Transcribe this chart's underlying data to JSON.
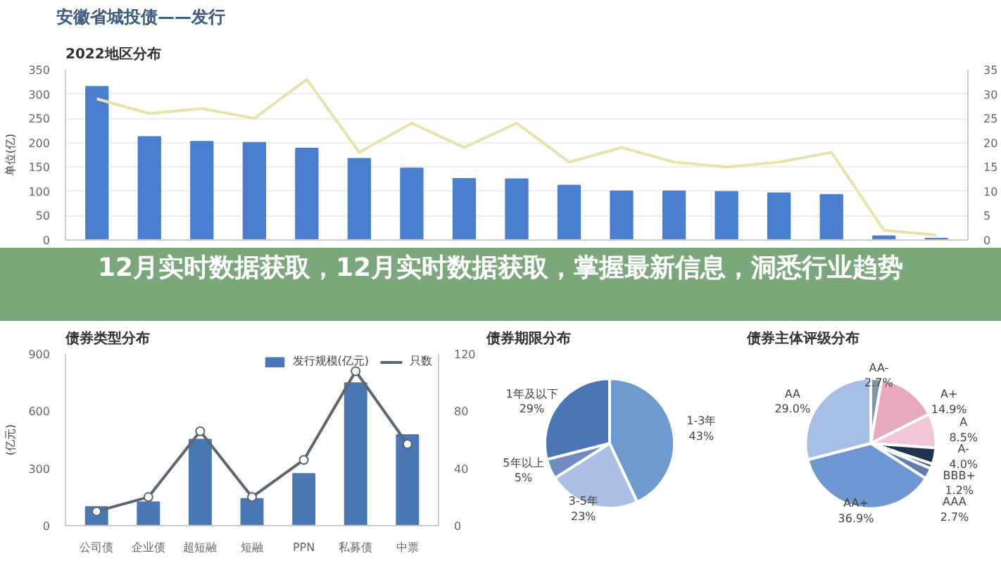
{
  "chart_data": [
    {
      "type": "other",
      "title": "安徽省城投债——发行"
    },
    {
      "type": "bar",
      "title": "2022地区分布",
      "ylabel": "单位(亿)",
      "categories": [
        null,
        null,
        null,
        null,
        null,
        null,
        null,
        null,
        null,
        null,
        null,
        null,
        null,
        null,
        null,
        null,
        null
      ],
      "series": [
        {
          "type": "bar",
          "color": "#4a7fd0",
          "values": [
            315,
            212,
            202,
            200,
            188,
            167,
            147,
            126,
            125,
            112,
            100,
            100,
            99,
            96,
            93,
            8,
            3
          ]
        },
        {
          "type": "line",
          "axis": "y2",
          "color": "#e6e3a8",
          "values": [
            29,
            26,
            27,
            25,
            33,
            18,
            24,
            19,
            24,
            16,
            19,
            16,
            15,
            16,
            18,
            2,
            1
          ]
        }
      ],
      "ylim": [
        0,
        350
      ],
      "yticks": [
        0,
        50,
        100,
        150,
        200,
        250,
        300,
        350
      ],
      "y2lim": [
        0,
        35
      ],
      "y2ticks": [
        0,
        5,
        10,
        15,
        20,
        25,
        30,
        35
      ],
      "grid": "y",
      "legend": false
    },
    {
      "type": "other",
      "title": "12月实时数据获取，12月实时数据获取，掌握最新信息，洞悉行业趋势"
    },
    {
      "type": "bar",
      "title": "债券类型分布",
      "ylabel": "(亿元)",
      "categories": [
        "公司债",
        "企业债",
        "超短融",
        "短融",
        "PPN",
        "私募债",
        "中票"
      ],
      "series": [
        {
          "type": "bar",
          "name": "发行规模(亿元)",
          "color": "#4a78b5",
          "values": [
            99,
            124,
            452,
            141,
            272,
            748,
            476
          ]
        },
        {
          "type": "line",
          "name": "只数",
          "axis": "y2",
          "color": "#5b6670",
          "marker": "circle",
          "values": [
            10,
            20,
            66,
            20,
            46,
            108,
            57
          ]
        }
      ],
      "ylim": [
        0,
        900
      ],
      "yticks": [
        0,
        300,
        600,
        900
      ],
      "y2lim": [
        0,
        120
      ],
      "y2ticks": [
        0,
        40,
        80,
        120
      ],
      "legend": "top right"
    },
    {
      "type": "pie",
      "title": "债券期限分布",
      "categories": [
        "1-3年",
        "3-5年",
        "5年以上",
        "1年及以下"
      ],
      "values": [
        43,
        23,
        5,
        29
      ],
      "colors": [
        "#6e9ad0",
        "#a9bfe3",
        "#6f8bbf",
        "#4a76b6"
      ],
      "value_labels": [
        "43%",
        "23%",
        "5%",
        "29%"
      ]
    },
    {
      "type": "pie",
      "title": "债券主体评级分布",
      "categories": [
        "AA-",
        "A+",
        "A",
        "A-",
        "BBB+",
        "AAA",
        "AA+",
        "AA"
      ],
      "values": [
        2.7,
        14.9,
        8.5,
        4.0,
        1.2,
        2.7,
        36.9,
        29.0
      ],
      "colors": [
        "#7f97a8",
        "#e8a9bf",
        "#f2c6d8",
        "#1f3352",
        "#3a5a8a",
        "#5a7fb0",
        "#6f98d3",
        "#a6bee6"
      ],
      "value_labels": [
        "2.7%",
        "14.9%",
        "8.5%",
        "4.0%",
        "1.2%",
        "2.7%",
        "36.9%",
        "29.0%"
      ]
    }
  ]
}
